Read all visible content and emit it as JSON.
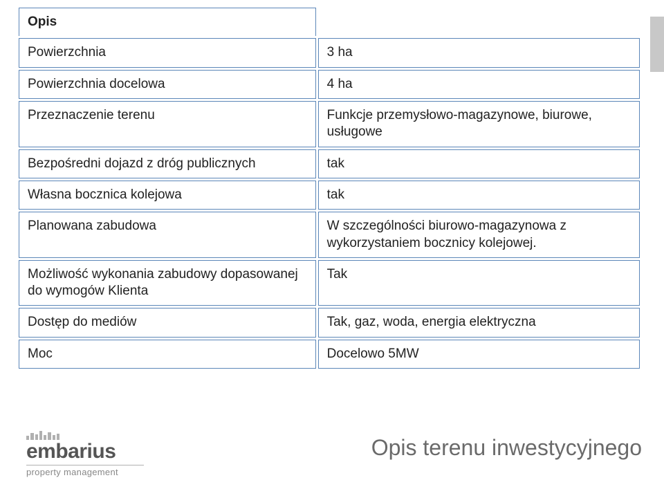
{
  "table": {
    "border_color": "#5b86b8",
    "header_label": "Opis",
    "rows": [
      {
        "label": "Powierzchnia",
        "value": "3 ha"
      },
      {
        "label": "Powierzchnia docelowa",
        "value": "4 ha"
      },
      {
        "label": "Przeznaczenie terenu",
        "value": "Funkcje przemysłowo-magazynowe, biurowe, usługowe"
      },
      {
        "label": "Bezpośredni dojazd z dróg publicznych",
        "value": "tak"
      },
      {
        "label": "Własna bocznica kolejowa",
        "value": "tak"
      },
      {
        "label": "Planowana zabudowa",
        "value": "W szczególności biurowo-magazynowa z wykorzystaniem bocznicy kolejowej."
      },
      {
        "label": "Możliwość wykonania zabudowy dopasowanej do wymogów Klienta",
        "value": "Tak"
      },
      {
        "label": "Dostęp do mediów",
        "value": "Tak, gaz, woda, energia elektryczna"
      },
      {
        "label": "Moc",
        "value": "Docelowo 5MW"
      }
    ]
  },
  "footer": {
    "title": "Opis terenu inwestycyjnego"
  },
  "brand": {
    "name": "embarius",
    "tagline": "property management"
  },
  "colors": {
    "accent_gray": "#c8c8c8",
    "text_gray": "#6a6a6a",
    "border": "#5b86b8"
  }
}
